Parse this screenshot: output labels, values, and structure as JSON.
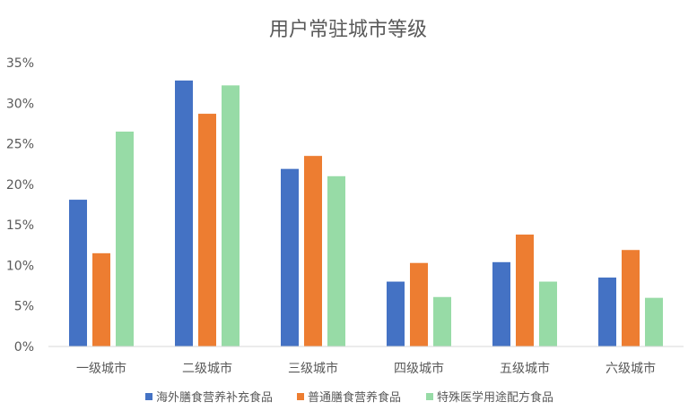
{
  "chart_data": {
    "type": "bar",
    "title": "用户常驻城市等级",
    "categories": [
      "一级城市",
      "二级城市",
      "三级城市",
      "四级城市",
      "五级城市",
      "六级城市"
    ],
    "series": [
      {
        "name": "海外膳食营养补充食品",
        "color": "#4472C4",
        "values": [
          18.1,
          32.8,
          21.9,
          8.0,
          10.4,
          8.5
        ]
      },
      {
        "name": "普通膳食营养食品",
        "color": "#ED7D31",
        "values": [
          11.5,
          28.7,
          23.5,
          10.3,
          13.8,
          11.9
        ]
      },
      {
        "name": "特殊医学用途配方食品",
        "color": "#97DBA6",
        "values": [
          26.5,
          32.2,
          21.0,
          6.1,
          8.0,
          6.0
        ]
      }
    ],
    "yticks": [
      "0%",
      "5%",
      "10%",
      "15%",
      "20%",
      "25%",
      "30%",
      "35%"
    ],
    "ylim": [
      0,
      35
    ],
    "grid": false,
    "legend": "bottom",
    "xlabel": "",
    "ylabel": ""
  }
}
